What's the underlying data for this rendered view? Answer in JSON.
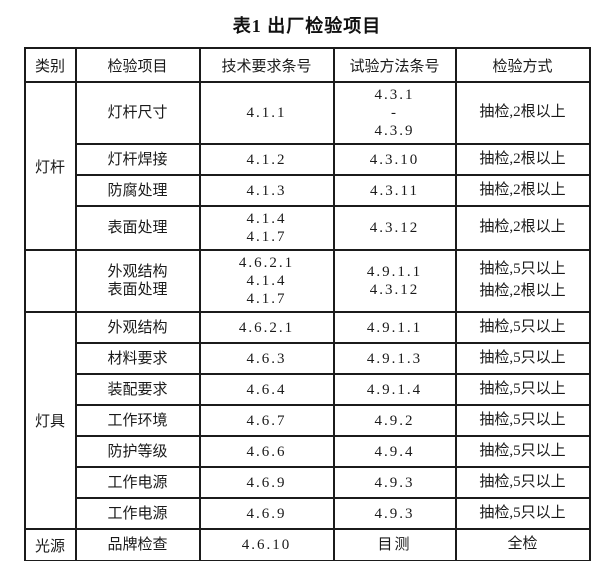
{
  "page": {
    "title": "表1  出厂检验项目"
  },
  "table": {
    "headers": [
      "类别",
      "检验项目",
      "技术要求条号",
      "试验方法条号",
      "检验方式"
    ],
    "categories": [
      {
        "label": "灯杆",
        "rowspan": 4
      },
      {
        "label": "",
        "rowspan": 1
      },
      {
        "label": "灯具",
        "rowspan": 7
      },
      {
        "label": "光源",
        "rowspan": 1
      }
    ],
    "rows": [
      {
        "category": 0,
        "item": [
          "灯杆尺寸"
        ],
        "tech": [
          "4.1.1"
        ],
        "method": [
          "4.3.1",
          "-",
          "4.3.9"
        ],
        "mode": [
          "抽检,2根以上"
        ]
      },
      {
        "item": [
          "灯杆焊接"
        ],
        "tech": [
          "4.1.2"
        ],
        "method": [
          "4.3.10"
        ],
        "mode": [
          "抽检,2根以上"
        ]
      },
      {
        "item": [
          "防腐处理"
        ],
        "tech": [
          "4.1.3"
        ],
        "method": [
          "4.3.11"
        ],
        "mode": [
          "抽检,2根以上"
        ]
      },
      {
        "item": [
          "表面处理"
        ],
        "tech": [
          "4.1.4",
          "4.1.7"
        ],
        "method": [
          "4.3.12"
        ],
        "mode": [
          "抽检,2根以上"
        ]
      },
      {
        "category": 1,
        "item": [
          "外观结构",
          "表面处理"
        ],
        "tech": [
          "4.6.2.1",
          "4.1.4",
          "4.1.7"
        ],
        "method": [
          "4.9.1.1",
          "4.3.12"
        ],
        "mode": [
          "抽检,5只以上",
          "抽检,2根以上"
        ]
      },
      {
        "category": 2,
        "item": [
          "外观结构"
        ],
        "tech": [
          "4.6.2.1"
        ],
        "method": [
          "4.9.1.1"
        ],
        "mode": [
          "抽检,5只以上"
        ]
      },
      {
        "item": [
          "材料要求"
        ],
        "tech": [
          "4.6.3"
        ],
        "method": [
          "4.9.1.3"
        ],
        "mode": [
          "抽检,5只以上"
        ]
      },
      {
        "item": [
          "装配要求"
        ],
        "tech": [
          "4.6.4"
        ],
        "method": [
          "4.9.1.4"
        ],
        "mode": [
          "抽检,5只以上"
        ]
      },
      {
        "item": [
          "工作环境"
        ],
        "tech": [
          "4.6.7"
        ],
        "method": [
          "4.9.2"
        ],
        "mode": [
          "抽检,5只以上"
        ]
      },
      {
        "item": [
          "防护等级"
        ],
        "tech": [
          "4.6.6"
        ],
        "method": [
          "4.9.4"
        ],
        "mode": [
          "抽检,5只以上"
        ]
      },
      {
        "item": [
          "工作电源"
        ],
        "tech": [
          "4.6.9"
        ],
        "method": [
          "4.9.3"
        ],
        "mode": [
          "抽检,5只以上"
        ]
      },
      {
        "item": [
          "工作电源"
        ],
        "tech": [
          "4.6.9"
        ],
        "method": [
          "4.9.3"
        ],
        "mode": [
          "抽检,5只以上"
        ]
      },
      {
        "category": 3,
        "item": [
          "品牌检查"
        ],
        "tech": [
          "4.6.10"
        ],
        "method": [
          "目测"
        ],
        "mode": [
          "全检"
        ]
      }
    ]
  }
}
